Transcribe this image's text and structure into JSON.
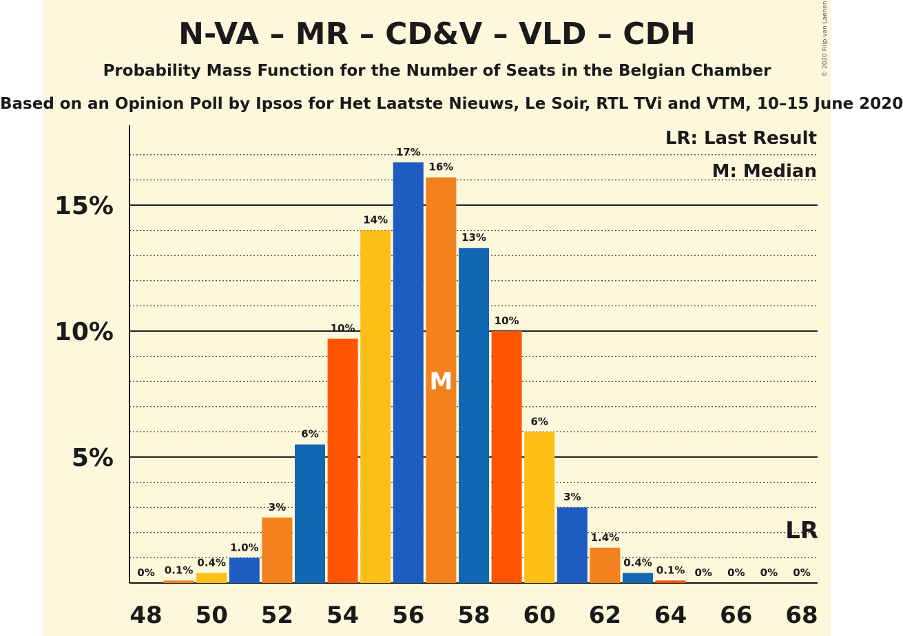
{
  "header": {
    "title": "N-VA – MR – CD&V – VLD – CDH",
    "subtitle": "Probability Mass Function for the Number of Seats in the Belgian Chamber",
    "source": "Based on an Opinion Poll by Ipsos for Het Laatste Nieuws, Le Soir, RTL TVi and VTM, 10–15 June 2020",
    "copyright": "© 2020 Filip van Laenen"
  },
  "legend": {
    "last_result": "LR: Last Result",
    "median": "M: Median"
  },
  "markers": {
    "median_symbol": "M",
    "last_result_symbol": "LR"
  },
  "chart_data": {
    "type": "bar",
    "x": [
      48,
      49,
      50,
      51,
      52,
      53,
      54,
      55,
      56,
      57,
      58,
      59,
      60,
      61,
      62,
      63,
      64,
      65,
      66,
      67,
      68
    ],
    "values": [
      0,
      0.1,
      0.4,
      1.0,
      2.6,
      5.5,
      9.7,
      14.0,
      16.7,
      16.1,
      13.3,
      10.0,
      6.0,
      3.0,
      1.4,
      0.4,
      0.1,
      0,
      0,
      0,
      0
    ],
    "value_labels": [
      "0%",
      "0.1%",
      "0.4%",
      "1.0%",
      "3%",
      "6%",
      "10%",
      "14%",
      "17%",
      "16%",
      "13%",
      "10%",
      "6%",
      "3%",
      "1.4%",
      "0.4%",
      "0.1%",
      "0%",
      "0%",
      "0%",
      "0%"
    ],
    "colors": [
      "#1e5cc1",
      "#f3811e",
      "#fbbf18",
      "#1e5cc1",
      "#f3811e",
      "#1167b1",
      "#ff5500",
      "#fbbf18",
      "#1e5cc1",
      "#f3811e",
      "#1167b1",
      "#ff5500",
      "#fbbf18",
      "#1e5cc1",
      "#f3811e",
      "#1167b1",
      "#ff5500",
      "#fbbf18",
      "#1e5cc1",
      "#f3811e",
      "#1167b1"
    ],
    "x_ticks": [
      "48",
      "50",
      "52",
      "54",
      "56",
      "58",
      "60",
      "62",
      "64",
      "66",
      "68"
    ],
    "y_ticks": [
      "5%",
      "10%",
      "15%"
    ],
    "y_tick_values": [
      5,
      10,
      15
    ],
    "ylim": [
      0,
      18
    ],
    "median_seat": 57,
    "last_result_seat": 68,
    "grid": "dotted every 1%, solid every 5%"
  }
}
